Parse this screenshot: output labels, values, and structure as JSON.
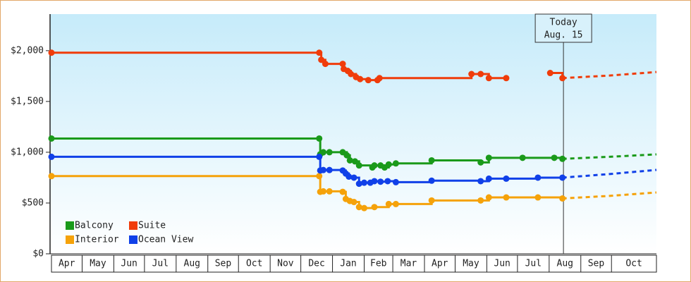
{
  "chart_data": {
    "type": "step-line",
    "xlim": [
      0,
      592
    ],
    "xticks": [
      {
        "value": 0,
        "label": "Apr"
      },
      {
        "value": 30,
        "label": "May"
      },
      {
        "value": 61,
        "label": "Jun"
      },
      {
        "value": 91,
        "label": "Jul"
      },
      {
        "value": 122,
        "label": "Aug"
      },
      {
        "value": 153,
        "label": "Sep"
      },
      {
        "value": 183,
        "label": "Oct"
      },
      {
        "value": 214,
        "label": "Nov"
      },
      {
        "value": 244,
        "label": "Dec"
      },
      {
        "value": 275,
        "label": "Jan"
      },
      {
        "value": 306,
        "label": "Feb"
      },
      {
        "value": 334,
        "label": "Mar"
      },
      {
        "value": 365,
        "label": "Apr"
      },
      {
        "value": 395,
        "label": "May"
      },
      {
        "value": 426,
        "label": "Jun"
      },
      {
        "value": 456,
        "label": "Jul"
      },
      {
        "value": 487,
        "label": "Aug"
      },
      {
        "value": 518,
        "label": "Sep"
      },
      {
        "value": 548,
        "label": "Oct"
      }
    ],
    "ylim": [
      0,
      2360
    ],
    "yticks": [
      {
        "value": 0,
        "label": "$0"
      },
      {
        "value": 500,
        "label": "$500"
      },
      {
        "value": 1000,
        "label": "$1,000"
      },
      {
        "value": 1500,
        "label": "$1,500"
      },
      {
        "value": 2000,
        "label": "$2,000"
      }
    ],
    "today": {
      "x": 501,
      "label": "Today",
      "date": "Aug. 15"
    },
    "series": [
      {
        "name": "Balcony",
        "color": "#1a9a1a",
        "x": [
          0,
          262,
          263,
          266,
          272,
          285,
          289,
          292,
          297,
          301,
          314,
          316,
          322,
          326,
          330,
          337,
          372,
          420,
          428,
          461,
          492,
          500
        ],
        "values": [
          1135,
          1135,
          980,
          1000,
          1000,
          1000,
          970,
          920,
          910,
          870,
          850,
          870,
          870,
          850,
          880,
          890,
          920,
          900,
          945,
          945,
          945,
          935
        ],
        "forecast": {
          "x": [
            500,
            546,
            592
          ],
          "values": [
            935,
            955,
            979
          ]
        }
      },
      {
        "name": "Suite",
        "color": "#f03c0a",
        "x": [
          0,
          262,
          264,
          268,
          285,
          286,
          290,
          293,
          298,
          302,
          310,
          319,
          321,
          411,
          420,
          428,
          445,
          466,
          488,
          500
        ],
        "values": [
          1980,
          1980,
          1910,
          1870,
          1870,
          1820,
          1800,
          1770,
          1740,
          1720,
          1710,
          1710,
          1730,
          1770,
          1770,
          1730,
          1730,
          null,
          1780,
          1730
        ],
        "forecast": {
          "x": [
            500,
            546,
            592
          ],
          "values": [
            1730,
            1755,
            1790
          ]
        }
      },
      {
        "name": "Interior",
        "color": "#f5a20a",
        "x": [
          0,
          262,
          263,
          266,
          272,
          285,
          288,
          292,
          296,
          301,
          306,
          316,
          330,
          337,
          372,
          420,
          428,
          445,
          476,
          500
        ],
        "values": [
          765,
          765,
          610,
          615,
          615,
          610,
          540,
          520,
          510,
          460,
          450,
          460,
          490,
          490,
          525,
          525,
          555,
          555,
          555,
          545
        ],
        "forecast": {
          "x": [
            500,
            546,
            592
          ],
          "values": [
            545,
            570,
            604
          ]
        }
      },
      {
        "name": "Ocean View",
        "color": "#1040e8",
        "x": [
          0,
          262,
          263,
          266,
          272,
          285,
          288,
          291,
          296,
          301,
          306,
          312,
          316,
          322,
          329,
          337,
          372,
          420,
          428,
          445,
          476,
          500
        ],
        "values": [
          955,
          955,
          820,
          825,
          825,
          820,
          790,
          760,
          750,
          690,
          700,
          700,
          715,
          710,
          715,
          705,
          720,
          715,
          740,
          740,
          750,
          750
        ],
        "forecast": {
          "x": [
            500,
            546,
            592
          ],
          "values": [
            750,
            785,
            826
          ]
        }
      }
    ]
  }
}
